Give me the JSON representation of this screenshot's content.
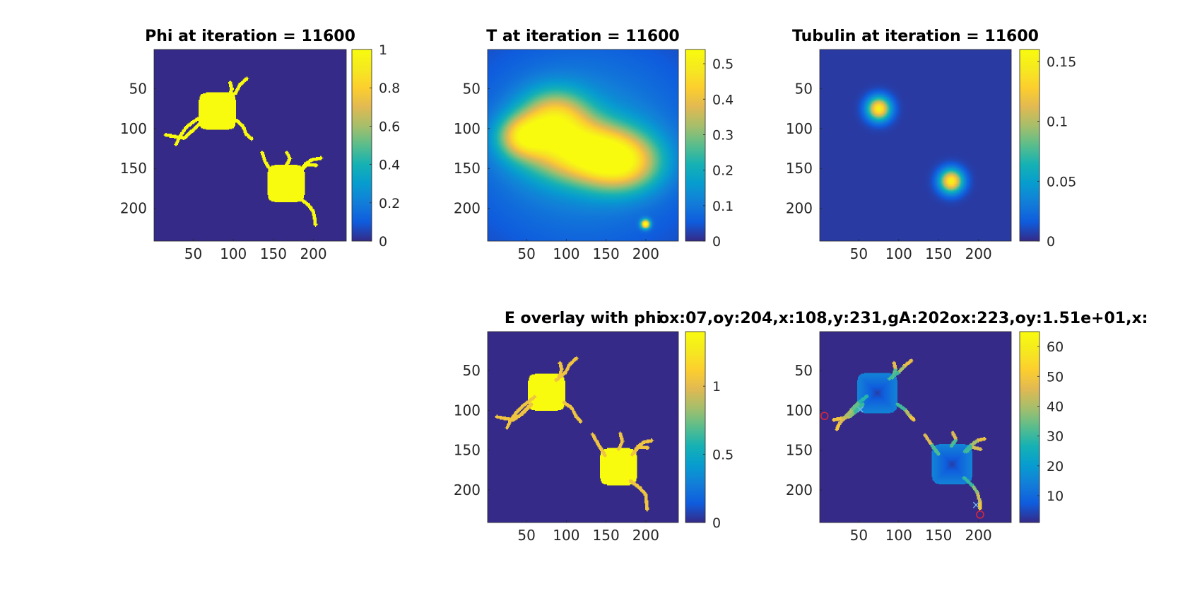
{
  "figure": {
    "colormap": "parula",
    "background": "#ffffff"
  },
  "chart_data": [
    {
      "id": "phi",
      "type": "heatmap",
      "title": "Phi at iteration = 11600",
      "xticks": [
        50,
        100,
        150,
        200
      ],
      "yticks": [
        50,
        100,
        150,
        200
      ],
      "xlim": [
        1,
        241
      ],
      "ylim": [
        1,
        241
      ],
      "colorbar": {
        "range": [
          0,
          1
        ],
        "ticks": [
          0,
          0.2,
          0.4,
          0.6,
          0.8,
          1
        ],
        "tick_labels": [
          "0",
          "0.2",
          "0.4",
          "0.6",
          "0.8",
          "1"
        ]
      },
      "background_value": 0,
      "cells": [
        {
          "type": "soma",
          "center": [
            80,
            78
          ],
          "half_size": 23,
          "value": 1
        },
        {
          "type": "soma",
          "center": [
            166,
            169
          ],
          "half_size": 23,
          "value": 1
        }
      ],
      "neurites": [
        [
          [
            92,
            64
          ],
          [
            103,
            55
          ],
          [
            108,
            45
          ],
          [
            117,
            37
          ]
        ],
        [
          [
            95,
            62
          ],
          [
            98,
            50
          ],
          [
            96,
            42
          ]
        ],
        [
          [
            65,
            83
          ],
          [
            52,
            90
          ],
          [
            41,
            98
          ],
          [
            33,
            110
          ],
          [
            28,
            120
          ]
        ],
        [
          [
            60,
            92
          ],
          [
            47,
            104
          ],
          [
            38,
            112
          ],
          [
            27,
            110
          ],
          [
            15,
            108
          ]
        ],
        [
          [
            103,
            89
          ],
          [
            112,
            97
          ],
          [
            116,
            107
          ],
          [
            123,
            113
          ]
        ],
        [
          [
            149,
            156
          ],
          [
            140,
            142
          ],
          [
            136,
            130
          ]
        ],
        [
          [
            166,
            147
          ],
          [
            171,
            138
          ],
          [
            167,
            130
          ]
        ],
        [
          [
            183,
            154
          ],
          [
            191,
            144
          ],
          [
            199,
            139
          ],
          [
            210,
            137
          ]
        ],
        [
          [
            185,
            152
          ],
          [
            192,
            145
          ],
          [
            204,
            146
          ]
        ],
        [
          [
            181,
            186
          ],
          [
            194,
            196
          ],
          [
            200,
            204
          ],
          [
            202,
            213
          ],
          [
            203,
            221
          ]
        ]
      ],
      "neurite_value": 1
    },
    {
      "id": "T",
      "type": "heatmap",
      "title": "T at iteration = 11600",
      "xticks": [
        50,
        100,
        150,
        200
      ],
      "yticks": [
        50,
        100,
        150,
        200
      ],
      "xlim": [
        1,
        241
      ],
      "ylim": [
        1,
        241
      ],
      "colorbar": {
        "range": [
          0,
          0.54
        ],
        "ticks": [
          0,
          0.1,
          0.2,
          0.3,
          0.4,
          0.5
        ],
        "tick_labels": [
          "0",
          "0.1",
          "0.2",
          "0.3",
          "0.4",
          "0.5"
        ]
      },
      "background_value": 0.02,
      "blobs": [
        {
          "center": [
            120,
            128
          ],
          "sigma_x": 48,
          "sigma_y": 26,
          "value": 0.38
        },
        {
          "center": [
            85,
            85
          ],
          "sigma_x": 30,
          "sigma_y": 24,
          "value": 0.3
        },
        {
          "center": [
            45,
            110
          ],
          "sigma_x": 22,
          "sigma_y": 18,
          "value": 0.3
        },
        {
          "center": [
            170,
            145
          ],
          "sigma_x": 34,
          "sigma_y": 24,
          "value": 0.3
        },
        {
          "center": [
            120,
            120
          ],
          "sigma_x": 95,
          "sigma_y": 85,
          "value": 0.13
        },
        {
          "center": [
            200,
            220
          ],
          "sigma_x": 4,
          "sigma_y": 4,
          "value": 0.5
        }
      ]
    },
    {
      "id": "tubulin",
      "type": "heatmap",
      "title": "Tubulin at iteration = 11600",
      "xticks": [
        50,
        100,
        150,
        200
      ],
      "yticks": [
        50,
        100,
        150,
        200
      ],
      "xlim": [
        1,
        241
      ],
      "ylim": [
        1,
        241
      ],
      "colorbar": {
        "range": [
          0,
          0.16
        ],
        "ticks": [
          0,
          0.05,
          0.1,
          0.15
        ],
        "tick_labels": [
          "0",
          "0.05",
          "0.1",
          "0.15"
        ]
      },
      "background_value": 0.005,
      "blobs": [
        {
          "center": [
            75,
            75
          ],
          "sigma_x": 10,
          "sigma_y": 10,
          "value": 0.145
        },
        {
          "center": [
            166,
            166
          ],
          "sigma_x": 10,
          "sigma_y": 10,
          "value": 0.145
        }
      ]
    },
    {
      "id": "E",
      "type": "heatmap",
      "title": "E overlay with phi",
      "xticks": [
        50,
        100,
        150,
        200
      ],
      "yticks": [
        50,
        100,
        150,
        200
      ],
      "xlim": [
        1,
        241
      ],
      "ylim": [
        1,
        241
      ],
      "colorbar": {
        "range": [
          0,
          1.4
        ],
        "ticks": [
          0,
          0.5,
          1
        ],
        "tick_labels": [
          "0",
          "0.5",
          "1"
        ]
      },
      "background_value": 0,
      "cells": [
        {
          "type": "soma",
          "center": [
            75,
            77
          ],
          "half_size": 23,
          "value": 1.4
        },
        {
          "type": "soma",
          "center": [
            166,
            171
          ],
          "half_size": 23,
          "value": 1.4
        }
      ],
      "neurites": [
        [
          [
            87,
            62
          ],
          [
            99,
            52
          ],
          [
            104,
            42
          ],
          [
            113,
            34
          ]
        ],
        [
          [
            90,
            60
          ],
          [
            94,
            48
          ],
          [
            92,
            40
          ]
        ],
        [
          [
            60,
            83
          ],
          [
            48,
            92
          ],
          [
            38,
            101
          ],
          [
            30,
            112
          ],
          [
            25,
            122
          ]
        ],
        [
          [
            56,
            92
          ],
          [
            43,
            105
          ],
          [
            33,
            112
          ],
          [
            22,
            110
          ],
          [
            12,
            108
          ]
        ],
        [
          [
            97,
            90
          ],
          [
            107,
            97
          ],
          [
            112,
            107
          ],
          [
            118,
            114
          ]
        ],
        [
          [
            149,
            157
          ],
          [
            141,
            144
          ],
          [
            133,
            130
          ]
        ],
        [
          [
            166,
            149
          ],
          [
            171,
            139
          ],
          [
            168,
            129
          ]
        ],
        [
          [
            183,
            156
          ],
          [
            190,
            146
          ],
          [
            198,
            140
          ],
          [
            208,
            138
          ]
        ],
        [
          [
            185,
            154
          ],
          [
            191,
            146
          ],
          [
            203,
            147
          ]
        ],
        [
          [
            181,
            189
          ],
          [
            193,
            198
          ],
          [
            200,
            206
          ],
          [
            201,
            215
          ],
          [
            202,
            225
          ]
        ]
      ],
      "neurite_value": 1.05
    },
    {
      "id": "dist",
      "type": "heatmap",
      "title": "ox:07,oy:204,x:108,y:231,gA:202ox:223,oy:1.51e+01,x:",
      "xticks": [
        50,
        100,
        150,
        200
      ],
      "yticks": [
        50,
        100,
        150,
        200
      ],
      "xlim": [
        1,
        241
      ],
      "ylim": [
        1,
        241
      ],
      "colorbar": {
        "range": [
          1,
          65
        ],
        "ticks": [
          10,
          20,
          30,
          40,
          50,
          60
        ],
        "tick_labels": [
          "10",
          "20",
          "30",
          "40",
          "50",
          "60"
        ]
      },
      "background_value": 1,
      "cells": [
        {
          "type": "soma",
          "center": [
            73,
            78
          ],
          "half_size": 25,
          "value": 15
        },
        {
          "type": "soma",
          "center": [
            167,
            168
          ],
          "half_size": 25,
          "value": 15
        }
      ],
      "soma_center_value": 3,
      "neurites": [
        [
          [
            88,
            60
          ],
          [
            100,
            52
          ],
          [
            107,
            44
          ],
          [
            116,
            37
          ]
        ],
        [
          [
            92,
            59
          ],
          [
            96,
            48
          ],
          [
            94,
            40
          ]
        ],
        [
          [
            60,
            82
          ],
          [
            50,
            90
          ],
          [
            41,
            99
          ],
          [
            33,
            108
          ],
          [
            25,
            117
          ],
          [
            22,
            124
          ]
        ],
        [
          [
            55,
            92
          ],
          [
            44,
            103
          ],
          [
            38,
            108
          ],
          [
            28,
            110
          ],
          [
            18,
            112
          ]
        ],
        [
          [
            98,
            92
          ],
          [
            108,
            99
          ],
          [
            114,
            107
          ],
          [
            119,
            112
          ]
        ],
        [
          [
            150,
            155
          ],
          [
            141,
            143
          ],
          [
            133,
            131
          ]
        ],
        [
          [
            166,
            145
          ],
          [
            172,
            137
          ],
          [
            168,
            128
          ]
        ],
        [
          [
            183,
            152
          ],
          [
            191,
            144
          ],
          [
            199,
            138
          ],
          [
            208,
            136
          ]
        ],
        [
          [
            185,
            152
          ],
          [
            192,
            146
          ],
          [
            203,
            149
          ]
        ],
        [
          [
            182,
            185
          ],
          [
            193,
            195
          ],
          [
            199,
            204
          ],
          [
            202,
            215
          ],
          [
            202,
            224
          ]
        ]
      ],
      "neurite_value": [
        25,
        52
      ],
      "markers": [
        {
          "type": "circle",
          "x": 7,
          "y": 107,
          "color": "#d7263d"
        },
        {
          "type": "circle",
          "x": 202,
          "y": 231,
          "color": "#d7263d"
        },
        {
          "type": "cross",
          "x": 52,
          "y": 99,
          "color": "#6fb6e8"
        },
        {
          "type": "cross",
          "x": 197,
          "y": 219,
          "color": "#6fb6e8"
        }
      ]
    }
  ]
}
